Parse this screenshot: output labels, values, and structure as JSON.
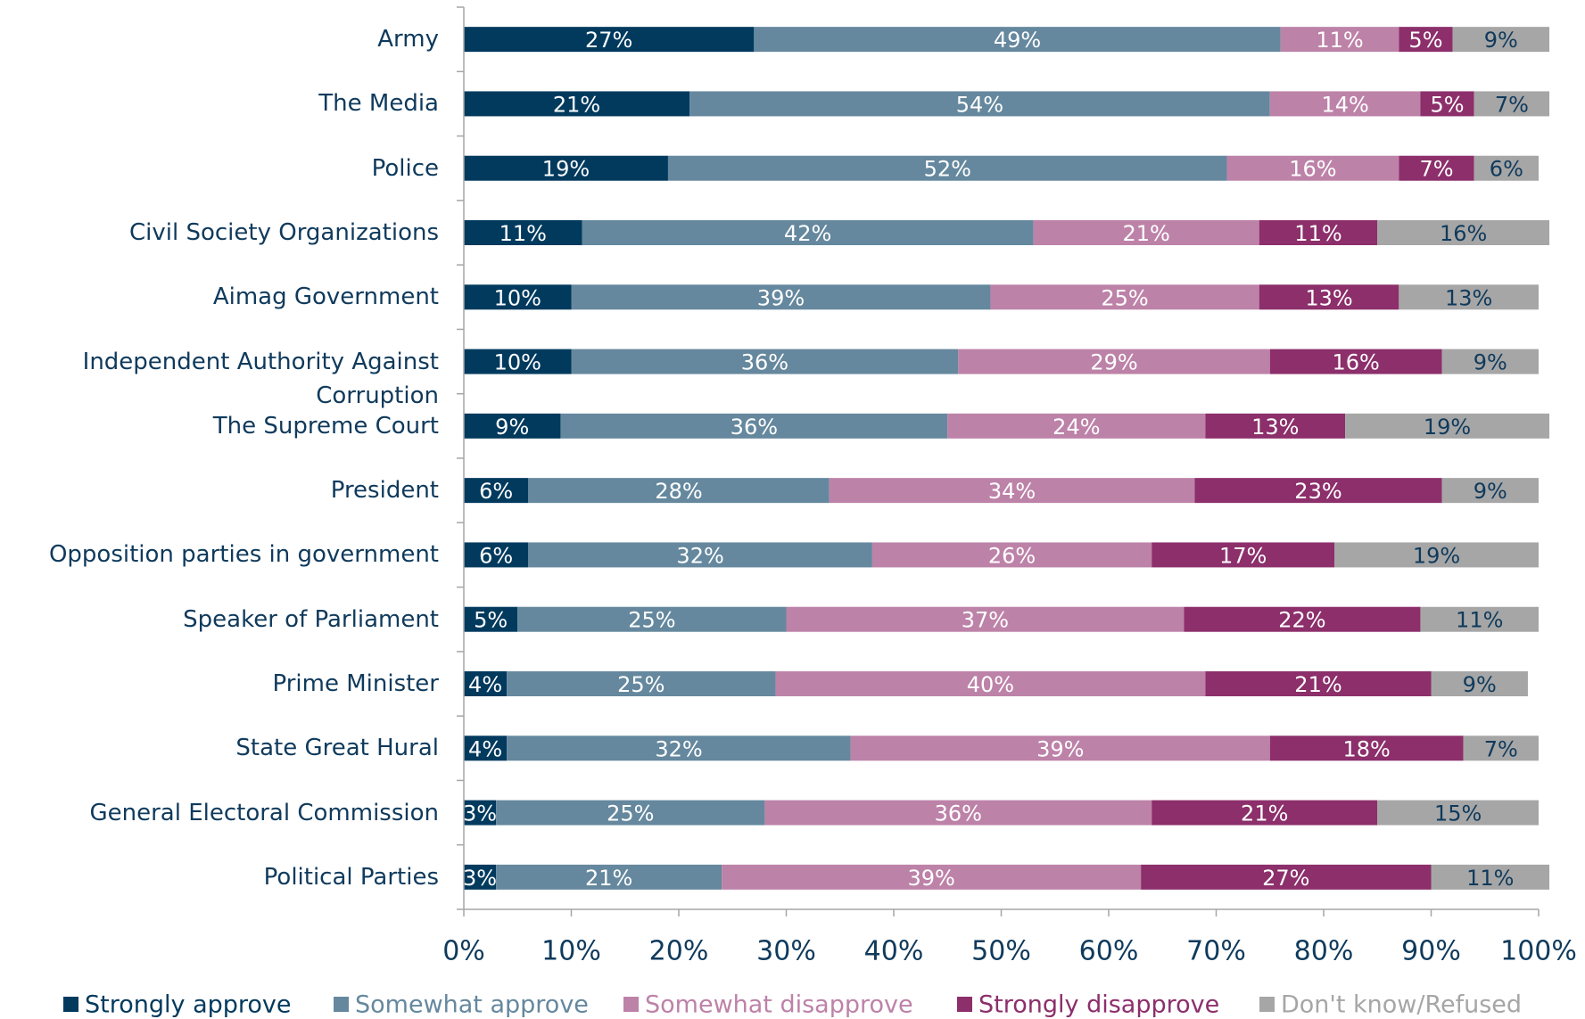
{
  "chart_data": {
    "type": "stacked_barh",
    "categories": [
      "Army",
      "The Media",
      "Police",
      "Civil Society Organizations",
      "Aimag Government",
      "Independent Authority Against\nCorruption",
      "The Supreme Court",
      "President",
      "Opposition parties in government",
      "Speaker of Parliament",
      "Prime Minister",
      "State Great Hural",
      "General Electoral Commission",
      "Political Parties"
    ],
    "series": [
      {
        "name": "Strongly approve",
        "color": "#023a5e",
        "label_color": "#ffffff",
        "values": [
          27,
          21,
          19,
          11,
          10,
          10,
          9,
          6,
          6,
          5,
          4,
          4,
          3,
          3
        ],
        "value_labels": [
          "27%",
          "21%",
          "19%",
          "11%",
          "10%",
          "10%",
          "9%",
          "6%",
          "6%",
          "5%",
          "4%",
          "4%",
          "3%",
          "3%"
        ]
      },
      {
        "name": "Somewhat approve",
        "color": "#65889e",
        "label_color": "#ffffff",
        "values": [
          49,
          54,
          52,
          42,
          39,
          36,
          36,
          28,
          32,
          25,
          25,
          32,
          25,
          21
        ],
        "value_labels": [
          "49%",
          "54%",
          "52%",
          "42%",
          "39%",
          "36%",
          "36%",
          "28%",
          "32%",
          "25%",
          "25%",
          "32%",
          "25%",
          "21%"
        ]
      },
      {
        "name": "Somewhat disapprove",
        "color": "#bd82a8",
        "label_color": "#ffffff",
        "values": [
          11,
          14,
          16,
          21,
          25,
          29,
          24,
          34,
          26,
          37,
          40,
          39,
          36,
          39
        ],
        "value_labels": [
          "11%",
          "14%",
          "16%",
          "21%",
          "25%",
          "29%",
          "24%",
          "34%",
          "26%",
          "37%",
          "40%",
          "39%",
          "36%",
          "39%"
        ]
      },
      {
        "name": "Strongly disapprove",
        "color": "#8c2f6b",
        "label_color": "#ffffff",
        "values": [
          5,
          5,
          7,
          11,
          13,
          16,
          13,
          23,
          17,
          22,
          21,
          18,
          21,
          27
        ],
        "value_labels": [
          "5%",
          "5%",
          "7%",
          "11%",
          "13%",
          "16%",
          "13%",
          "23%",
          "17%",
          "22%",
          "21%",
          "18%",
          "21%",
          "27%"
        ]
      },
      {
        "name": "Don't know/Refused",
        "color": "#a6a6a6",
        "label_color": "#0f3a5c",
        "values": [
          9,
          7,
          6,
          16,
          13,
          9,
          19,
          9,
          19,
          11,
          9,
          7,
          15,
          11
        ],
        "value_labels": [
          "9%",
          "7%",
          "6%",
          "16%",
          "13%",
          "9%",
          "19%",
          "9%",
          "19%",
          "11%",
          "9%",
          "7%",
          "15%",
          "11%"
        ]
      }
    ],
    "xlim": [
      0,
      100
    ],
    "xticks": [
      {
        "value": 0,
        "label": "0%"
      },
      {
        "value": 10,
        "label": "10%"
      },
      {
        "value": 20,
        "label": "20%"
      },
      {
        "value": 30,
        "label": "30%"
      },
      {
        "value": 40,
        "label": "40%"
      },
      {
        "value": 50,
        "label": "50%"
      },
      {
        "value": 60,
        "label": "60%"
      },
      {
        "value": 70,
        "label": "70%"
      },
      {
        "value": 80,
        "label": "80%"
      },
      {
        "value": 90,
        "label": "90%"
      },
      {
        "value": 100,
        "label": "100%"
      }
    ],
    "legend": "bottom"
  }
}
